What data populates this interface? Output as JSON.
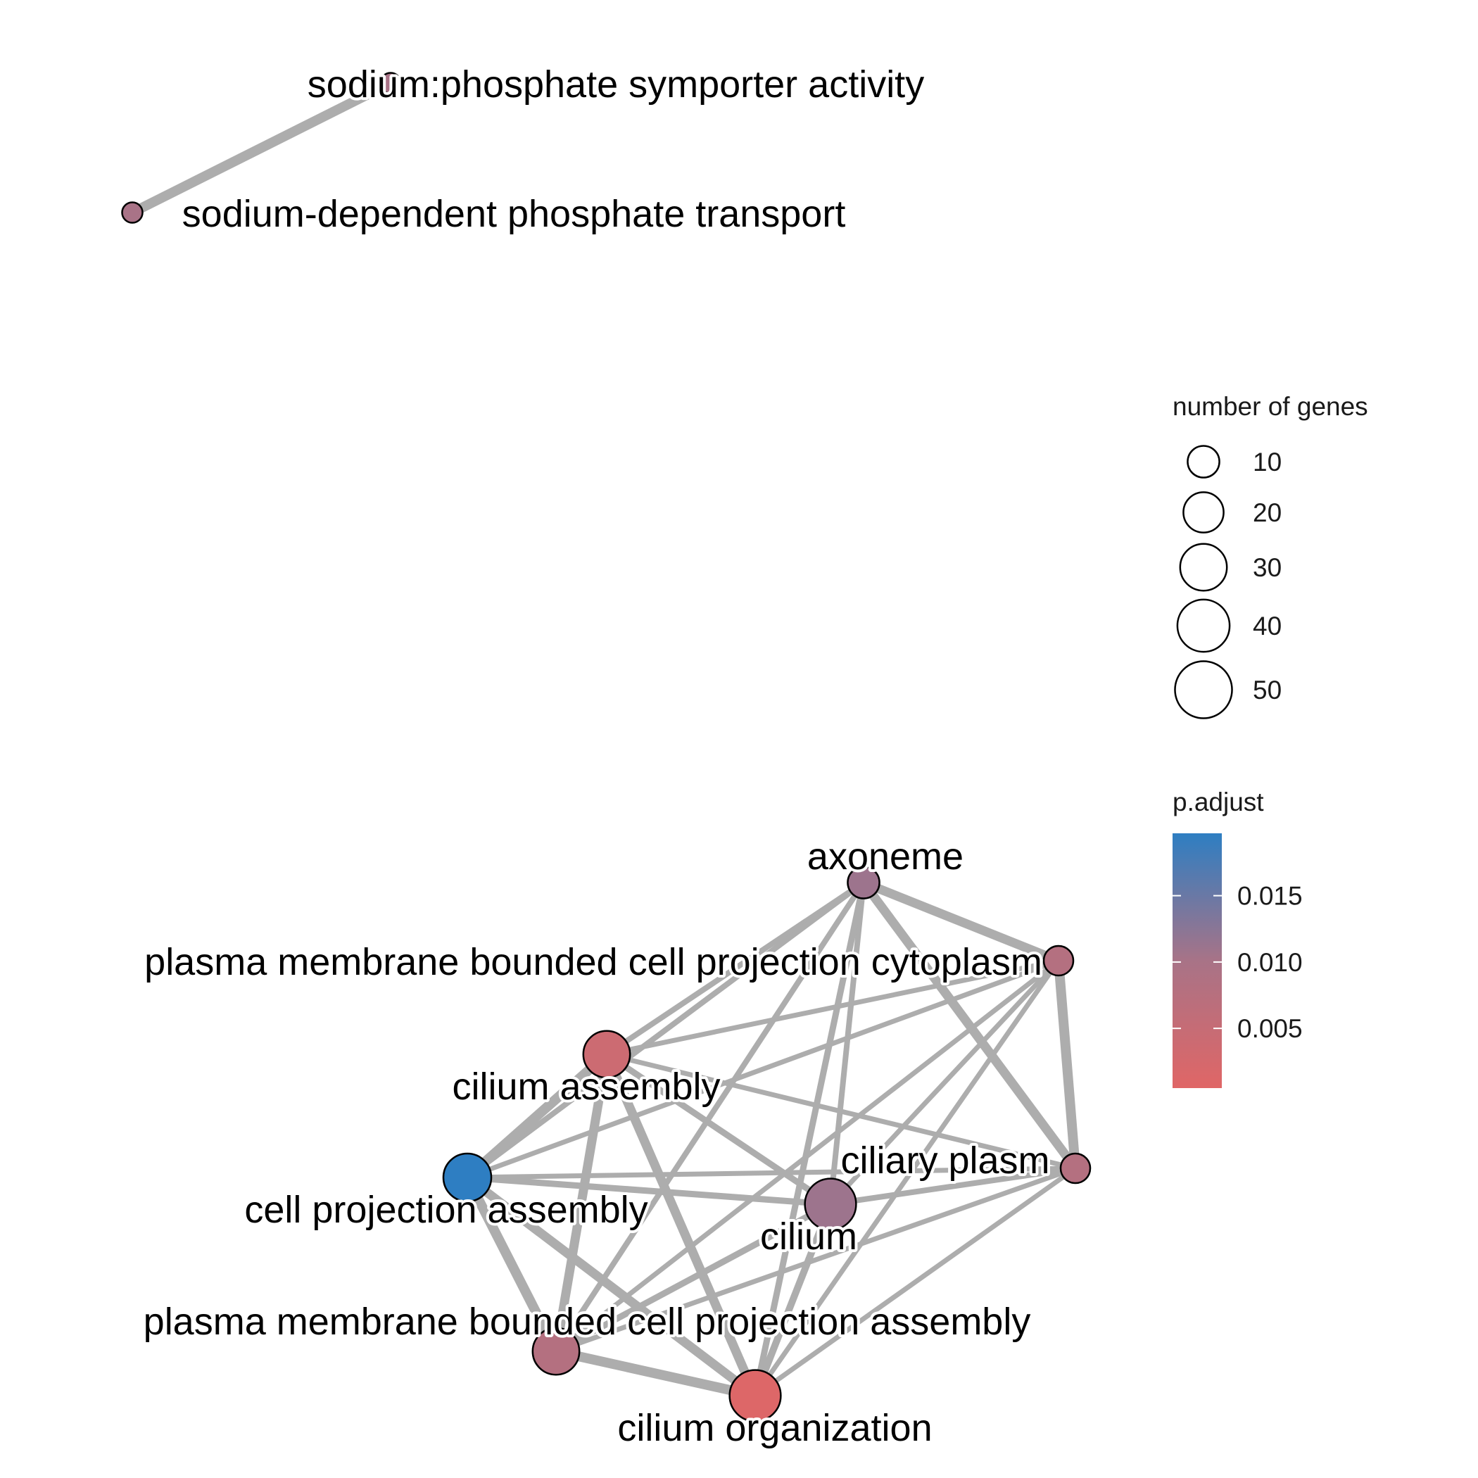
{
  "nodes": [
    {
      "id": "n1",
      "label": "sodium:phosphate symporter activity",
      "genes": 2,
      "p_adjust": 0.01
    },
    {
      "id": "n2",
      "label": "sodium-dependent phosphate transport",
      "genes": 2,
      "p_adjust": 0.01
    },
    {
      "id": "n3",
      "label": "axoneme",
      "genes": 10,
      "p_adjust": 0.011
    },
    {
      "id": "n4",
      "label": "plasma membrane bounded cell projection cytoplasm",
      "genes": 8,
      "p_adjust": 0.008
    },
    {
      "id": "n5",
      "label": "cilium assembly",
      "genes": 30,
      "p_adjust": 0.004
    },
    {
      "id": "n6",
      "label": "ciliary plasm",
      "genes": 8,
      "p_adjust": 0.008
    },
    {
      "id": "n7",
      "label": "cell projection assembly",
      "genes": 32,
      "p_adjust": 0.02
    },
    {
      "id": "n8",
      "label": "cilium",
      "genes": 38,
      "p_adjust": 0.011
    },
    {
      "id": "n9",
      "label": "plasma membrane bounded cell projection assembly",
      "genes": 30,
      "p_adjust": 0.008
    },
    {
      "id": "n10",
      "label": "cilium organization",
      "genes": 38,
      "p_adjust": 0.001
    }
  ],
  "edges": [
    {
      "source": "n1",
      "target": "n2",
      "weight": 1.0
    },
    {
      "source": "n3",
      "target": "n4",
      "weight": 0.9
    },
    {
      "source": "n3",
      "target": "n6",
      "weight": 0.9
    },
    {
      "source": "n3",
      "target": "n5",
      "weight": 0.4
    },
    {
      "source": "n3",
      "target": "n7",
      "weight": 0.4
    },
    {
      "source": "n3",
      "target": "n8",
      "weight": 0.4
    },
    {
      "source": "n3",
      "target": "n9",
      "weight": 0.4
    },
    {
      "source": "n3",
      "target": "n10",
      "weight": 0.5
    },
    {
      "source": "n4",
      "target": "n6",
      "weight": 1.0
    },
    {
      "source": "n4",
      "target": "n5",
      "weight": 0.3
    },
    {
      "source": "n4",
      "target": "n7",
      "weight": 0.3
    },
    {
      "source": "n4",
      "target": "n8",
      "weight": 0.3
    },
    {
      "source": "n4",
      "target": "n9",
      "weight": 0.3
    },
    {
      "source": "n4",
      "target": "n10",
      "weight": 0.3
    },
    {
      "source": "n5",
      "target": "n7",
      "weight": 1.0
    },
    {
      "source": "n5",
      "target": "n9",
      "weight": 0.9
    },
    {
      "source": "n5",
      "target": "n10",
      "weight": 0.9
    },
    {
      "source": "n5",
      "target": "n8",
      "weight": 0.5
    },
    {
      "source": "n5",
      "target": "n6",
      "weight": 0.3
    },
    {
      "source": "n7",
      "target": "n9",
      "weight": 1.0
    },
    {
      "source": "n7",
      "target": "n10",
      "weight": 0.9
    },
    {
      "source": "n7",
      "target": "n8",
      "weight": 0.5
    },
    {
      "source": "n7",
      "target": "n6",
      "weight": 0.3
    },
    {
      "source": "n6",
      "target": "n8",
      "weight": 0.4
    },
    {
      "source": "n6",
      "target": "n9",
      "weight": 0.3
    },
    {
      "source": "n6",
      "target": "n10",
      "weight": 0.3
    },
    {
      "source": "n8",
      "target": "n9",
      "weight": 0.5
    },
    {
      "source": "n8",
      "target": "n10",
      "weight": 0.6
    },
    {
      "source": "n9",
      "target": "n10",
      "weight": 1.0
    }
  ],
  "legend": {
    "size_title": "number of genes",
    "size_items": [
      {
        "label": "10",
        "value": 10
      },
      {
        "label": "20",
        "value": 20
      },
      {
        "label": "30",
        "value": 30
      },
      {
        "label": "40",
        "value": 40
      },
      {
        "label": "50",
        "value": 50
      }
    ],
    "color_title": "p.adjust",
    "color_ticks": [
      {
        "label": "0.015",
        "value": 0.015
      },
      {
        "label": "0.010",
        "value": 0.01
      },
      {
        "label": "0.005",
        "value": 0.005
      }
    ],
    "color_range": [
      0.0005,
      0.0197
    ],
    "color_low": "#E06666",
    "color_mid": "#A87387",
    "color_high": "#2E7EC2"
  },
  "colors": {
    "edge": "#ADADAD",
    "node_stroke": "#000000"
  }
}
